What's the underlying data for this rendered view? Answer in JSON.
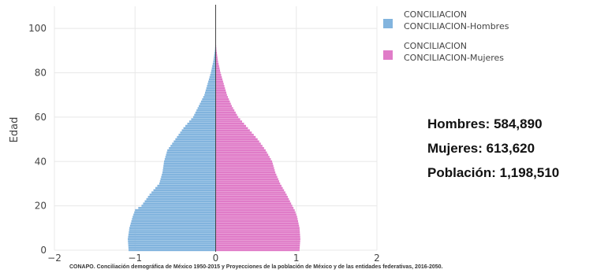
{
  "chart_data": {
    "type": "bar",
    "orientation": "horizontal",
    "subtype": "population-pyramid",
    "ylabel": "Edad",
    "xlabel": "",
    "xlim": [
      -2,
      2
    ],
    "ylim": [
      0,
      110
    ],
    "xticks": [
      -2,
      -1,
      0,
      1,
      2
    ],
    "xtick_labels": [
      "−2",
      "−1",
      "0",
      "1",
      "2"
    ],
    "yticks": [
      0,
      20,
      40,
      60,
      80,
      100
    ],
    "grid": true,
    "legend_placement": "top-right",
    "ages": [
      0,
      5,
      10,
      15,
      18,
      20,
      25,
      30,
      35,
      40,
      45,
      50,
      55,
      60,
      65,
      70,
      75,
      80,
      85,
      90,
      95
    ],
    "series": [
      {
        "name": "CONCILIACION CONCILIACION-Hombres",
        "legend_lines": [
          "CONCILIACION",
          "CONCILIACION-Hombres"
        ],
        "color": "#82b4de",
        "values": [
          -1.08,
          -1.09,
          -1.07,
          -1.03,
          -1.0,
          -0.92,
          -0.82,
          -0.7,
          -0.66,
          -0.64,
          -0.6,
          -0.5,
          -0.4,
          -0.28,
          -0.21,
          -0.14,
          -0.1,
          -0.06,
          -0.03,
          -0.01,
          0.0
        ]
      },
      {
        "name": "CONCILIACION CONCILIACION-Mujeres",
        "legend_lines": [
          "CONCILIACION",
          "CONCILIACION-Mujeres"
        ],
        "color": "#e07cc8",
        "values": [
          1.04,
          1.05,
          1.04,
          1.01,
          0.98,
          0.95,
          0.88,
          0.8,
          0.74,
          0.7,
          0.62,
          0.52,
          0.4,
          0.28,
          0.2,
          0.14,
          0.1,
          0.06,
          0.03,
          0.01,
          0.0
        ]
      }
    ]
  },
  "stats": {
    "hombres": "Hombres: 584,890",
    "mujeres": "Mujeres: 613,620",
    "poblacion": "Población: 1,198,510"
  },
  "source": "CONAPO. Conciliación demográfica de México 1950-2015 y Proyecciones de la población de México y de las entidades federativas, 2016-2050."
}
